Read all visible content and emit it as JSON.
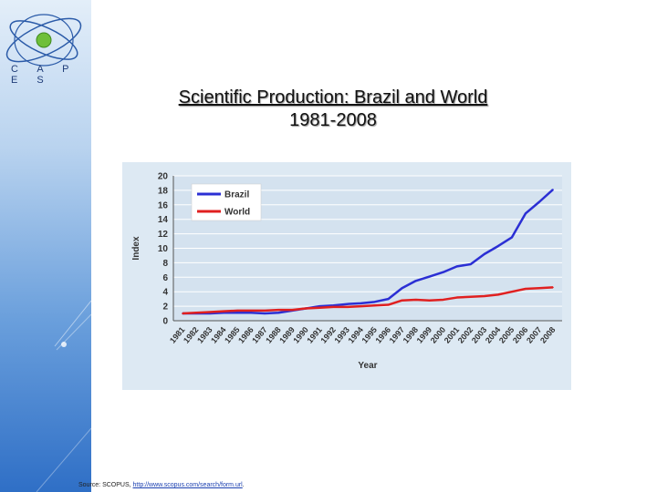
{
  "logo": {
    "text": "C A P E S"
  },
  "header": {
    "title": "Scientific Production: Brazil and World",
    "subtitle": "1981-2008"
  },
  "colors": {
    "brazil": "#2b2fd4",
    "world": "#e02020",
    "plot_bg": "#dde9f3"
  },
  "chart_data": {
    "type": "line",
    "xlabel": "Year",
    "ylabel": "Index",
    "ylim": [
      0,
      20
    ],
    "yticks": [
      0,
      2,
      4,
      6,
      8,
      10,
      12,
      14,
      16,
      18,
      20
    ],
    "grid": true,
    "legend": "top-left",
    "categories": [
      "1981",
      "1982",
      "1983",
      "1984",
      "1985",
      "1986",
      "1987",
      "1988",
      "1989",
      "1990",
      "1991",
      "1992",
      "1993",
      "1994",
      "1995",
      "1996",
      "1997",
      "1998",
      "1999",
      "2000",
      "2001",
      "2002",
      "2003",
      "2004",
      "2005",
      "2006",
      "2007",
      "2008"
    ],
    "series": [
      {
        "name": "Brazil",
        "values": [
          1.0,
          1.0,
          1.0,
          1.1,
          1.1,
          1.1,
          1.0,
          1.1,
          1.4,
          1.7,
          2.0,
          2.1,
          2.3,
          2.4,
          2.6,
          3.0,
          4.5,
          5.5,
          6.1,
          6.7,
          7.5,
          7.8,
          9.2,
          10.3,
          11.5,
          14.8,
          16.4,
          18.1
        ]
      },
      {
        "name": "World",
        "values": [
          1.0,
          1.1,
          1.2,
          1.3,
          1.4,
          1.4,
          1.4,
          1.5,
          1.5,
          1.7,
          1.8,
          1.9,
          1.9,
          2.0,
          2.1,
          2.2,
          2.8,
          2.9,
          2.8,
          2.9,
          3.2,
          3.3,
          3.4,
          3.6,
          4.0,
          4.4,
          4.5,
          4.6
        ]
      }
    ]
  },
  "source": {
    "prefix": "Source: SCOPUS, ",
    "link": "http://www.scopus.com/search/form.url",
    "suffix": "."
  }
}
